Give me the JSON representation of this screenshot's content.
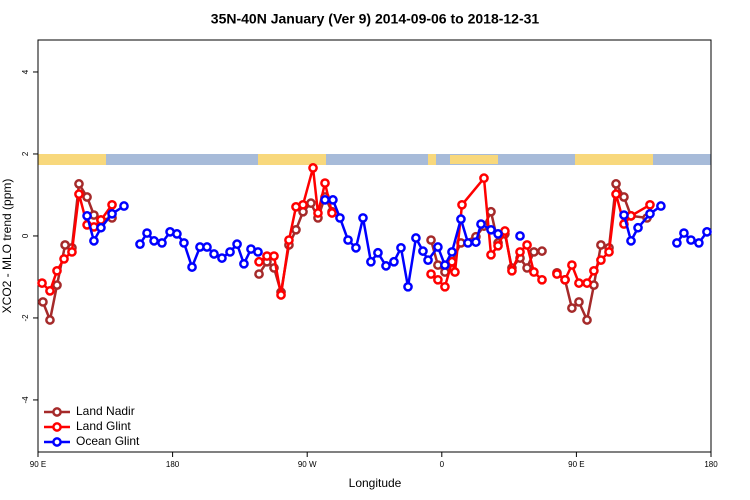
{
  "chart_data": {
    "type": "line",
    "title": "35N-40N January (Ver 9)   2014-09-06 to 2018-12-31",
    "xlabel": "Longitude",
    "ylabel": "XCO2 - MLO trend (ppm)",
    "xlim": [
      90,
      540
    ],
    "ylim": [
      -5.27,
      4.78
    ],
    "xticks": [
      {
        "value": 90,
        "label": "90 E"
      },
      180,
      {
        "value": 270,
        "label": "90 W"
      },
      {
        "value": 360,
        "label": "0"
      },
      {
        "value": 450,
        "label": "90 E"
      },
      {
        "value": 540,
        "label": "180"
      }
    ],
    "yticks": [
      -4,
      -2,
      0,
      2,
      4
    ],
    "legend": "bottomleft",
    "series": [
      {
        "name": "Land Nadir",
        "color": "#a52a2a",
        "x": [
          93.3,
          98.0,
          102.7,
          108.1,
          112.7,
          117.4,
          122.8,
          127.4,
          132.1,
          139.5,
          null,
          237.8,
          243.1,
          247.8,
          252.5,
          257.8,
          262.5,
          267.2,
          272.5,
          277.2,
          281.9,
          286.6,
          null,
          352.8,
          357.4,
          362.1,
          366.8,
          372.8,
          382.8,
          388.2,
          392.9,
          397.6,
          402.2,
          406.9,
          412.3,
          417.0,
          421.6,
          427.0,
          null,
          437.0,
          442.4,
          447.0,
          451.7,
          457.1,
          461.7,
          466.4,
          471.8,
          476.5,
          481.8,
          486.5,
          497.2
        ],
        "values": [
          -1.61,
          -2.05,
          -1.2,
          -0.22,
          -0.29,
          1.27,
          0.95,
          0.51,
          0.39,
          0.44,
          null,
          -0.93,
          -0.63,
          -0.78,
          -1.37,
          -0.22,
          0.15,
          0.59,
          0.8,
          0.44,
          0.95,
          0.59,
          null,
          -0.1,
          -0.71,
          -0.88,
          -0.63,
          -0.17,
          -0.02,
          0.24,
          0.59,
          -0.17,
          0.05,
          -0.78,
          -0.54,
          -0.78,
          -0.39,
          -0.37,
          null,
          -0.9,
          -1.07,
          -1.76,
          -1.61,
          -2.05,
          -1.2,
          -0.22,
          -0.29,
          1.27,
          0.95,
          0.49,
          0.44
        ]
      },
      {
        "name": "Land Glint",
        "color": "#ff0000",
        "x": [
          92.7,
          98.0,
          102.7,
          107.4,
          112.7,
          117.4,
          122.8,
          127.4,
          132.1,
          139.5,
          null,
          237.8,
          243.1,
          247.8,
          252.5,
          257.8,
          262.5,
          267.2,
          273.9,
          277.2,
          281.9,
          286.6,
          null,
          352.8,
          357.4,
          362.1,
          366.8,
          368.8,
          373.5,
          388.2,
          392.9,
          397.6,
          402.2,
          406.9,
          412.3,
          417.0,
          421.6,
          427.0,
          null,
          437.0,
          442.4,
          447.0,
          451.7,
          457.1,
          461.7,
          466.4,
          471.8,
          476.5,
          481.8,
          486.5,
          499.2
        ],
        "values": [
          -1.15,
          -1.34,
          -0.85,
          -0.56,
          -0.39,
          1.02,
          0.27,
          0.22,
          0.39,
          0.76,
          null,
          -0.63,
          -0.49,
          -0.49,
          -1.44,
          -0.1,
          0.71,
          0.76,
          1.66,
          0.56,
          1.29,
          0.56,
          null,
          -0.93,
          -1.07,
          -1.24,
          -0.63,
          -0.88,
          0.76,
          1.41,
          -0.46,
          -0.24,
          0.12,
          -0.85,
          -0.39,
          -0.22,
          -0.88,
          -1.07,
          null,
          -0.93,
          -1.07,
          -0.71,
          -1.15,
          -1.15,
          -0.85,
          -0.59,
          -0.39,
          1.02,
          0.29,
          0.49,
          0.76
        ]
      },
      {
        "name": "Ocean Glint",
        "color": "#0000ff",
        "x": [
          122.8,
          127.4,
          132.1,
          139.5,
          147.5,
          null,
          158.2,
          162.9,
          167.6,
          172.9,
          178.3,
          182.9,
          187.6,
          193.0,
          198.3,
          203.0,
          207.7,
          213.0,
          218.4,
          223.1,
          227.7,
          232.4,
          237.1,
          null,
          281.9,
          287.2,
          291.9,
          297.3,
          302.6,
          307.3,
          312.6,
          317.3,
          322.7,
          328.0,
          332.7,
          337.4,
          342.7,
          347.4,
          350.8,
          357.4,
          362.1,
          366.8,
          372.8,
          377.5,
          382.8,
          386.2,
          392.9,
          397.6,
          null,
          412.3,
          null,
          481.8,
          486.5,
          491.2,
          499.2,
          506.5,
          null,
          517.2,
          521.9,
          526.6,
          531.9,
          537.3
        ],
        "values": [
          0.49,
          -0.12,
          0.2,
          0.54,
          0.73,
          null,
          -0.2,
          0.07,
          -0.12,
          -0.17,
          0.1,
          0.05,
          -0.17,
          -0.76,
          -0.27,
          -0.27,
          -0.44,
          -0.54,
          -0.39,
          -0.2,
          -0.68,
          -0.32,
          -0.39,
          null,
          0.88,
          0.88,
          0.44,
          -0.1,
          -0.29,
          0.44,
          -0.63,
          -0.41,
          -0.73,
          -0.63,
          -0.29,
          -1.24,
          -0.05,
          -0.37,
          -0.59,
          -0.27,
          -0.71,
          -0.39,
          0.41,
          -0.17,
          -0.15,
          0.29,
          0.15,
          0.05,
          null,
          0.0,
          null,
          0.51,
          -0.12,
          0.2,
          0.54,
          0.73,
          null,
          -0.17,
          0.07,
          -0.1,
          -0.17,
          0.1
        ]
      }
    ]
  }
}
